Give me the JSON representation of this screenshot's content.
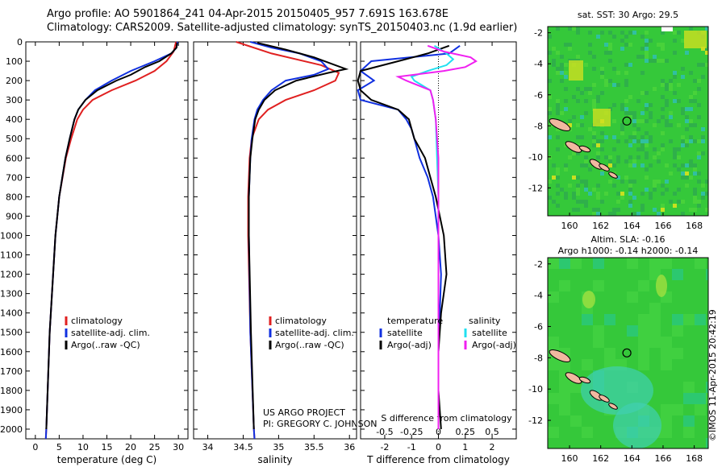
{
  "header": {
    "line1": "Argo profile: AO 5901864_241 04-Apr-2015 20150405_957 7.691S 163.678E",
    "line2": "Climatology: CARS2009. Satellite-adjusted climatology: synTS_20150403.nc (1.9d earlier)"
  },
  "footer_text": {
    "project": "US ARGO PROJECT",
    "pi": "PI: GREGORY C. JOHNSON",
    "copyright": "©IMOS 11-Apr-2015 20:42:19"
  },
  "colors": {
    "climatology": "#e02020",
    "satellite": "#1030e0",
    "argo": "#000000",
    "sat_salinity": "#20e0f0",
    "argo_salinity": "#f020f0",
    "map_green": "#35c83a",
    "land": "#f2b8a0"
  },
  "chart_data": [
    {
      "type": "line",
      "xlabel": "temperature (deg C)",
      "xticks": [
        "0",
        "5",
        "10",
        "15",
        "20",
        "25",
        "30"
      ],
      "xlim": [
        -2,
        32
      ],
      "ylim": [
        0,
        2050
      ],
      "yticks": [
        "0",
        "100",
        "200",
        "300",
        "400",
        "500",
        "600",
        "700",
        "800",
        "900",
        "1000",
        "1100",
        "1200",
        "1300",
        "1400",
        "1500",
        "1600",
        "1700",
        "1800",
        "1900",
        "2000"
      ],
      "legend": [
        "climatology",
        "satellite-adj. clim.",
        "Argo(..raw -QC)"
      ],
      "series": [
        {
          "name": "climatology",
          "pressure": [
            0,
            50,
            100,
            150,
            200,
            250,
            300,
            350,
            400,
            500,
            600,
            800,
            1000,
            1500,
            2000,
            2050
          ],
          "values": [
            29.5,
            29,
            27.5,
            25,
            21,
            16,
            12,
            10,
            8.8,
            7.5,
            6.4,
            5,
            4.2,
            3,
            2.3,
            2.2
          ]
        },
        {
          "name": "satellite-adj. clim.",
          "pressure": [
            0,
            30,
            60,
            100,
            150,
            200,
            250,
            300,
            350,
            400,
            500,
            600,
            800,
            1000,
            1500,
            2000,
            2050
          ],
          "values": [
            29.8,
            29.6,
            28.5,
            25,
            20,
            16,
            12.5,
            10.5,
            9,
            8.2,
            7.2,
            6.3,
            5,
            4.2,
            3,
            2.3,
            2.2
          ]
        },
        {
          "name": "Argo(..raw -QC)",
          "pressure": [
            5,
            30,
            60,
            100,
            130,
            170,
            200,
            250,
            300,
            350,
            400,
            500,
            600,
            800,
            1000,
            1500,
            2000
          ],
          "values": [
            29.7,
            29.6,
            28.5,
            26,
            23,
            20,
            17,
            13,
            10.5,
            9,
            8.2,
            7.2,
            6.3,
            5,
            4.2,
            3,
            2.3
          ]
        }
      ]
    },
    {
      "type": "line",
      "xlabel": "salinity",
      "xticks": [
        "34",
        "34.5",
        "35",
        "35.5",
        "36"
      ],
      "xlim": [
        33.8,
        36.1
      ],
      "ylim": [
        0,
        2050
      ],
      "legend": [
        "climatology",
        "satellite-adj. clim.",
        "Argo(..raw -QC)"
      ],
      "series": [
        {
          "name": "climatology",
          "pressure": [
            0,
            60,
            120,
            160,
            200,
            250,
            300,
            350,
            400,
            500,
            600,
            800,
            1000,
            1500,
            2000,
            2050
          ],
          "values": [
            34.4,
            34.9,
            35.6,
            35.85,
            35.8,
            35.5,
            35.1,
            34.85,
            34.72,
            34.62,
            34.59,
            34.57,
            34.57,
            34.6,
            34.65,
            34.66
          ]
        },
        {
          "name": "satellite-adj. clim.",
          "pressure": [
            0,
            30,
            60,
            100,
            140,
            170,
            200,
            250,
            300,
            350,
            400,
            500,
            600,
            800,
            1000,
            1500,
            2000,
            2050
          ],
          "values": [
            34.6,
            34.9,
            35.3,
            35.6,
            35.7,
            35.5,
            35.1,
            34.9,
            34.78,
            34.7,
            34.66,
            34.62,
            34.6,
            34.58,
            34.58,
            34.6,
            34.65,
            34.66
          ]
        },
        {
          "name": "Argo(..raw -QC)",
          "pressure": [
            5,
            40,
            80,
            120,
            140,
            160,
            200,
            250,
            300,
            350,
            400,
            500,
            600,
            800,
            1000,
            1500,
            2000
          ],
          "values": [
            34.7,
            35.1,
            35.5,
            35.8,
            35.95,
            35.7,
            35.25,
            34.95,
            34.8,
            34.72,
            34.67,
            34.63,
            34.6,
            34.58,
            34.58,
            34.61,
            34.65
          ]
        }
      ]
    },
    {
      "type": "line",
      "xlabel": "T difference from climatology",
      "xlabel_top": "S difference from climatology",
      "xticks": [
        "-2",
        "-1",
        "0",
        "1",
        "2"
      ],
      "xticks_top": [
        "-0.5",
        "-0.25",
        "0",
        "0.25",
        "0.5"
      ],
      "xlim": [
        -2.9,
        2.9
      ],
      "ylim": [
        0,
        2050
      ],
      "legend_temperature": [
        "temperature",
        "satellite",
        "Argo(-adj)"
      ],
      "legend_salinity": [
        "salinity",
        "satellite",
        "Argo(-adj)"
      ],
      "series": [
        {
          "name": "satellite",
          "pressure": [
            20,
            60,
            100,
            150,
            200,
            250,
            300,
            350,
            400,
            450,
            500,
            600,
            700,
            800,
            1000,
            1200,
            1400,
            1600,
            1800,
            2000
          ],
          "values": [
            0.8,
            0.4,
            -2.5,
            -2.9,
            -2.4,
            -3,
            -2.9,
            -1.5,
            -1.2,
            -1.0,
            -0.9,
            -0.7,
            -0.4,
            -0.2,
            0,
            0.1,
            0.05,
            0,
            0,
            0
          ]
        },
        {
          "name": "Argo(-adj)",
          "pressure": [
            20,
            60,
            100,
            150,
            200,
            250,
            300,
            350,
            400,
            450,
            500,
            600,
            700,
            800,
            1000,
            1200,
            1400,
            1600,
            1800,
            2000
          ],
          "values": [
            0.4,
            -0.4,
            -1.5,
            -2.9,
            -3,
            -2.9,
            -2.5,
            -1.5,
            -1.1,
            -1.0,
            -0.9,
            -0.5,
            -0.3,
            -0.1,
            0.2,
            0.3,
            0.1,
            0,
            0,
            0.1
          ]
        },
        {
          "name": "salinity satellite",
          "pressure": [
            20,
            60,
            90,
            120,
            150,
            180,
            200,
            250,
            300,
            400,
            600,
            800,
            1000,
            1500,
            2000
          ],
          "values": [
            -0.15,
            0.3,
            0.55,
            0.3,
            -0.4,
            -1.0,
            -0.9,
            -0.3,
            -0.2,
            -0.1,
            -0.05,
            0,
            0,
            0,
            0
          ]
        },
        {
          "name": "salinity Argo(-adj)",
          "pressure": [
            20,
            50,
            80,
            100,
            130,
            150,
            180,
            200,
            250,
            300,
            400,
            600,
            800,
            1000,
            1500,
            2000
          ],
          "values": [
            -0.4,
            0.2,
            1.2,
            1.4,
            1.0,
            0.2,
            -1.5,
            -1.2,
            -0.3,
            -0.2,
            -0.1,
            0,
            0,
            0,
            0,
            0
          ]
        }
      ]
    },
    {
      "type": "heatmap",
      "title": "sat. SST: 30 Argo: 29.5",
      "xticks": [
        "160",
        "162",
        "164",
        "166",
        "168"
      ],
      "yticks": [
        "-2",
        "-4",
        "-6",
        "-8",
        "-10",
        "-12"
      ],
      "marker": {
        "lon": 163.678,
        "lat": -7.691
      }
    },
    {
      "type": "heatmap",
      "title": "Altim. SLA: -0.16",
      "subtitle": "Argo h1000: -0.14 h2000: -0.14",
      "xticks": [
        "160",
        "162",
        "164",
        "166",
        "168"
      ],
      "yticks": [
        "-2",
        "-4",
        "-6",
        "-8",
        "-10",
        "-12"
      ],
      "marker": {
        "lon": 163.678,
        "lat": -7.691
      }
    }
  ]
}
